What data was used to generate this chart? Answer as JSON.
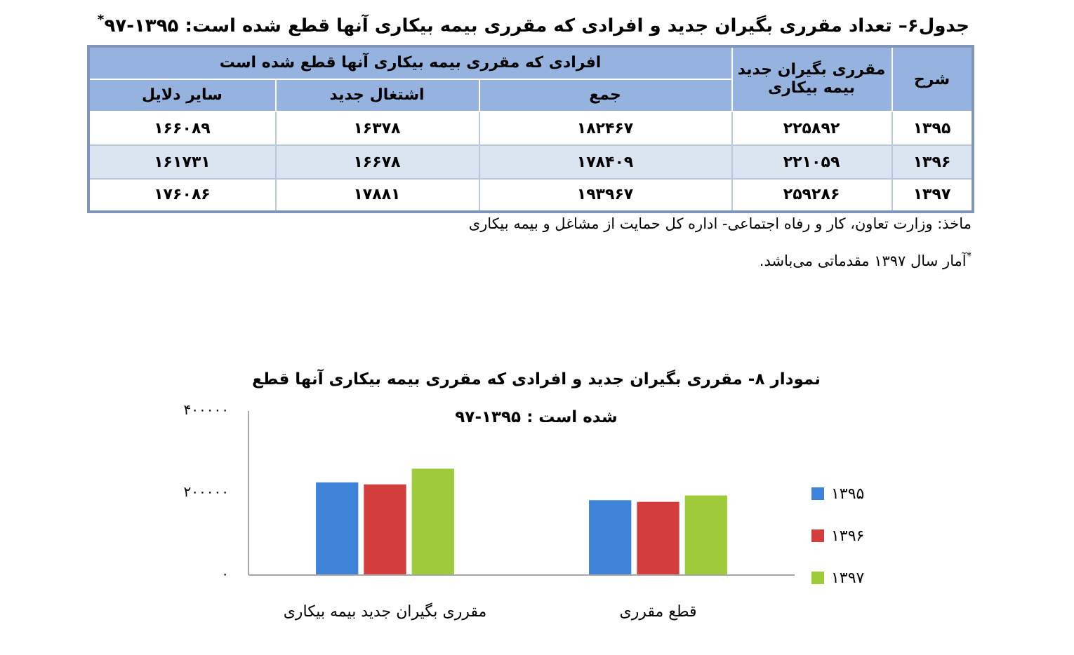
{
  "chart_data": [
    {
      "type": "other",
      "title": "جدول۶– تعداد مقرری بگیران جدید و افرادی که مقرری بیمه بیکاری آنها قطع شده است: ۱۳۹۵-۹۷$^{*}$",
      "ylabel": "شرح",
      "xlabel": "افرادی که مقرری بیمه بیکاری آنها قطع شده است",
      "categories": [
        "سایر دلایل",
        "اشتغال جدید",
        "جمع",
        "مقرری بگیران جدید بیمه بیکاری"
      ],
      "y_categories": [
        "۱۳۹۵",
        "۱۳۹۶",
        "۱۳۹۷"
      ],
      "cell_labels": [
        [
          "۱۶۶۰۸۹",
          "۱۶۳۷۸",
          "۱۸۲۴۶۷",
          "۲۲۵۸۹۲"
        ],
        [
          "۱۶۱۷۳۱",
          "۱۶۶۷۸",
          "۱۷۸۴۰۹",
          "۲۲۱۰۵۹"
        ],
        [
          "۱۷۶۰۸۶",
          "۱۷۸۸۱",
          "۱۹۳۹۶۷",
          "۲۵۹۲۸۶"
        ]
      ],
      "annotations": [
        "ماخذ: وزارت تعاون، کار و رفاه اجتماعی- اداره کل حمایت از مشاغل و بیمه بیکاری",
        "$^{*}$آمار سال ۱۳۹۷ مقدماتی می‌باشد."
      ]
    },
    {
      "type": "bar",
      "title": "نمودار ۸- مقرری بگیران جدید و افرادی که مقرری بیمه بیکاری آنها قطع شده است : ۱۳۹۵-۹۷",
      "categories": [
        "مقرری بگیران جدید بیمه بیکاری",
        "قطع مقرری"
      ],
      "series": [
        {
          "name": "۱۳۹۵",
          "color": "#3f83d8",
          "values": [
            225892,
            182467
          ]
        },
        {
          "name": "۱۳۹۶",
          "color": "#d33e3c",
          "values": [
            221059,
            178409
          ]
        },
        {
          "name": "۱۳۹۷",
          "color": "#9fcb3a",
          "values": [
            259286,
            193967
          ]
        }
      ],
      "ylim": [
        0,
        400000
      ],
      "yticks": [
        {
          "value": 0,
          "label": "۰"
        },
        {
          "value": 200000,
          "label": "۲۰۰۰۰۰"
        },
        {
          "value": 400000,
          "label": "۴۰۰۰۰۰"
        }
      ],
      "legend": "right"
    }
  ]
}
